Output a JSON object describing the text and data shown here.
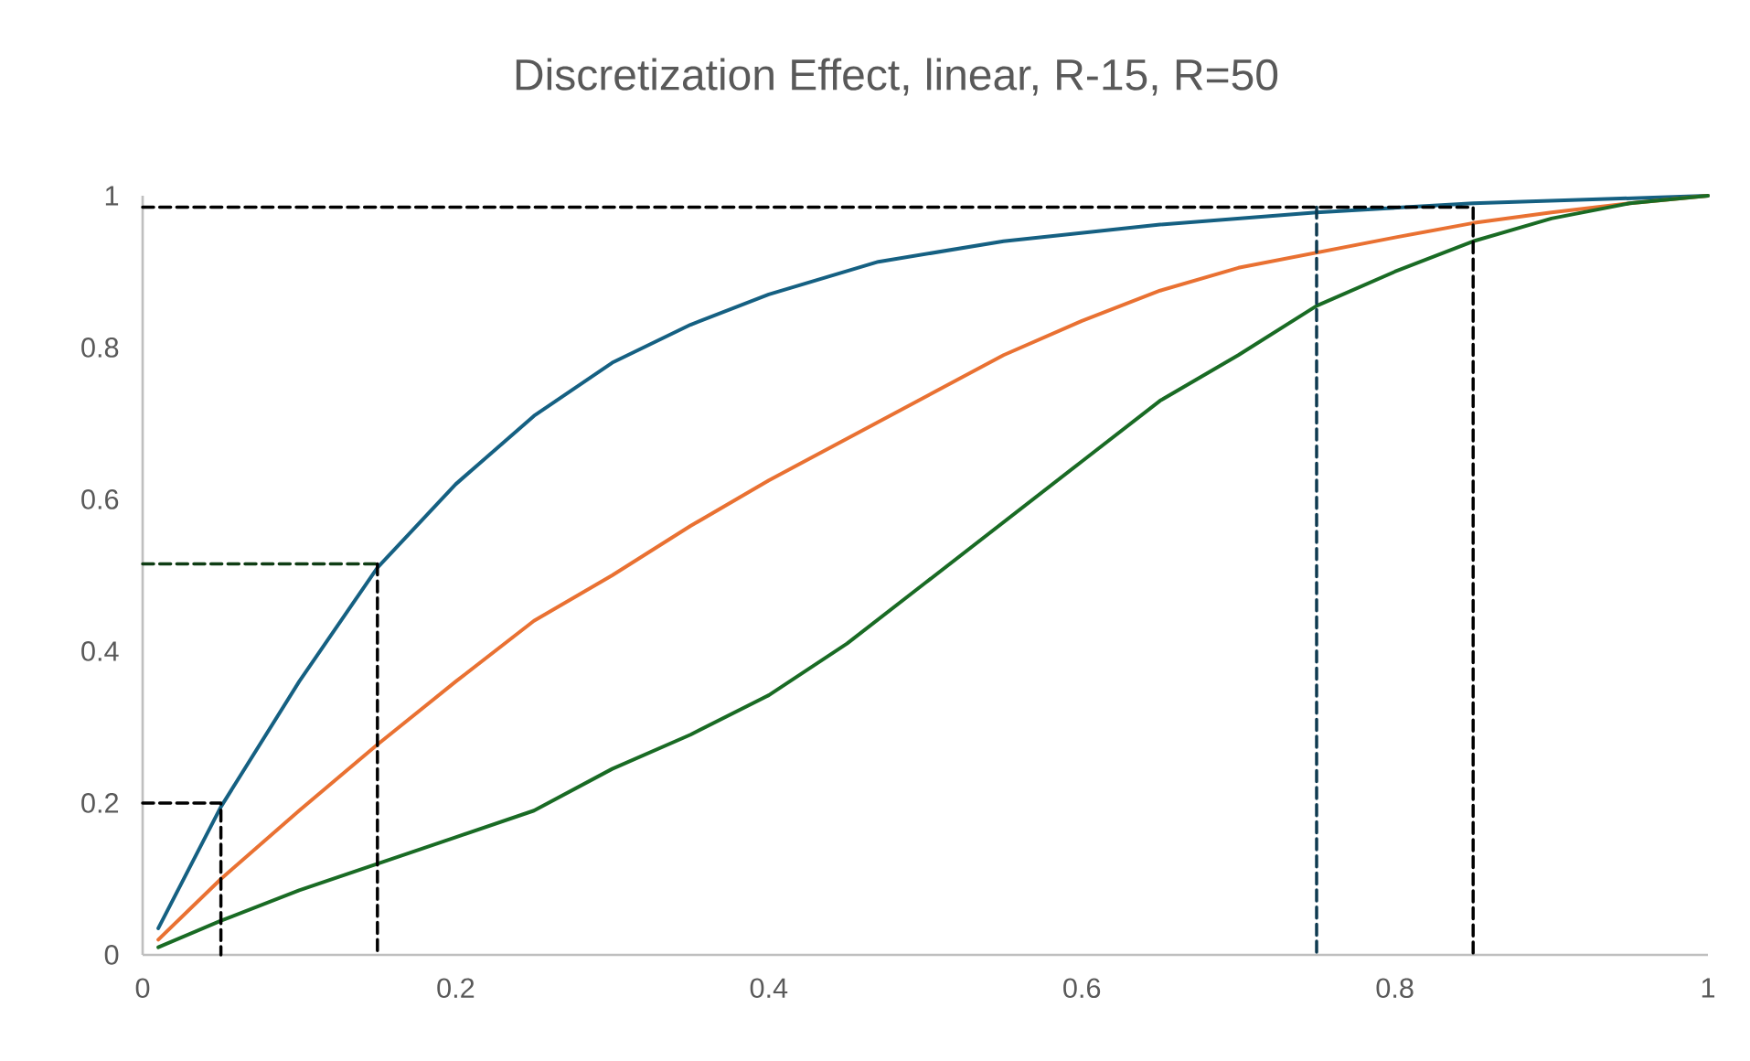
{
  "chart_data": {
    "type": "line",
    "title": "Discretization Effect, linear, R-15, R=50",
    "xlim": [
      0,
      1
    ],
    "ylim": [
      0,
      1
    ],
    "xticks": [
      0,
      0.2,
      0.4,
      0.6,
      0.8,
      1
    ],
    "yticks": [
      0,
      0.2,
      0.4,
      0.6,
      0.8,
      1
    ],
    "grid": false,
    "marker": "none",
    "line_style": "solid",
    "series": [
      {
        "color": "#156082",
        "x": [
          0.01,
          0.05,
          0.1,
          0.15,
          0.2,
          0.25,
          0.3,
          0.35,
          0.4,
          0.47,
          0.55,
          0.65,
          0.75,
          0.85,
          1
        ],
        "values": [
          0.035,
          0.195,
          0.36,
          0.51,
          0.62,
          0.71,
          0.78,
          0.83,
          0.87,
          0.913,
          0.94,
          0.962,
          0.978,
          0.99,
          1
        ]
      },
      {
        "color": "#e97132",
        "x": [
          0.01,
          0.05,
          0.1,
          0.15,
          0.2,
          0.25,
          0.3,
          0.35,
          0.4,
          0.45,
          0.5,
          0.55,
          0.6,
          0.65,
          0.7,
          0.75,
          0.8,
          0.85,
          0.9,
          0.95,
          1
        ],
        "values": [
          0.02,
          0.1,
          0.19,
          0.277,
          0.36,
          0.44,
          0.5,
          0.565,
          0.625,
          0.68,
          0.735,
          0.79,
          0.835,
          0.875,
          0.905,
          0.925,
          0.945,
          0.964,
          0.978,
          0.99,
          1
        ]
      },
      {
        "color": "#196b24",
        "x": [
          0.01,
          0.05,
          0.1,
          0.15,
          0.2,
          0.25,
          0.3,
          0.35,
          0.4,
          0.45,
          0.5,
          0.55,
          0.6,
          0.65,
          0.7,
          0.75,
          0.8,
          0.85,
          0.9,
          0.95,
          1
        ],
        "values": [
          0.01,
          0.045,
          0.085,
          0.12,
          0.155,
          0.19,
          0.245,
          0.29,
          0.342,
          0.41,
          0.49,
          0.57,
          0.65,
          0.73,
          0.79,
          0.855,
          0.9,
          0.94,
          0.97,
          0.99,
          1
        ]
      },
      {
        "color": "#000000",
        "line_style": "dashed",
        "x": [
          0,
          0.05,
          0.05
        ],
        "values": [
          0.2,
          0.2,
          0
        ]
      },
      {
        "color": "#0f3d14",
        "line_style": "dashed",
        "x": [
          0,
          0.15
        ],
        "values": [
          0.515,
          0.515
        ]
      },
      {
        "color": "#000000",
        "line_style": "dashed",
        "x": [
          0.15,
          0.15
        ],
        "values": [
          0.515,
          0
        ]
      },
      {
        "color": "#0e3a50",
        "line_style": "dashed",
        "x": [
          0.75,
          0.75
        ],
        "values": [
          0.985,
          0
        ]
      },
      {
        "color": "#000000",
        "line_style": "dashed",
        "x": [
          0,
          0.85,
          0.85
        ],
        "values": [
          0.985,
          0.985,
          0
        ]
      }
    ]
  }
}
